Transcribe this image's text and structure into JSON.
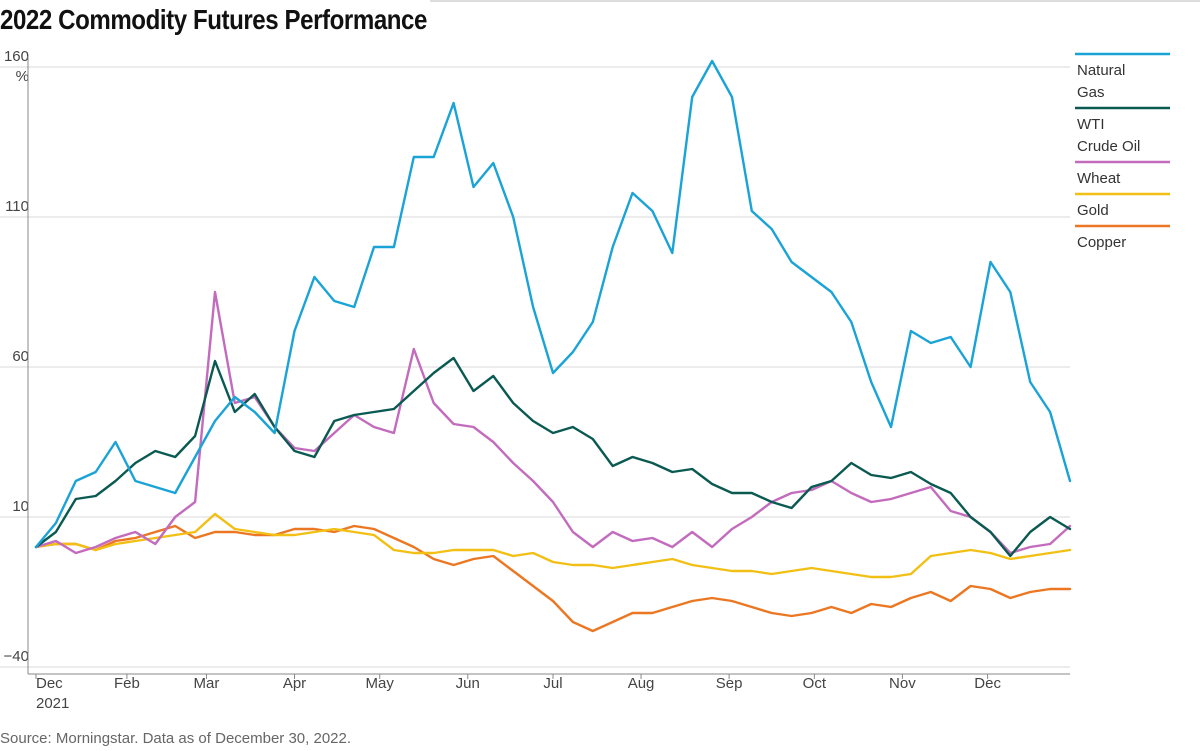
{
  "title": "2022 Commodity Futures Performance",
  "source": "Source: Morningstar. Data as of December 30, 2022.",
  "colors": {
    "natural_gas": "#1aa3d6",
    "wti": "#0b5a52",
    "wheat": "#c36bbd",
    "gold": "#f2c014",
    "copper": "#ec7722"
  },
  "chart_data": {
    "type": "line",
    "title": "2022 Commodity Futures Performance",
    "ylabel": "%",
    "ylim": [
      -40,
      165
    ],
    "yticks": [
      160,
      110,
      60,
      10,
      -40
    ],
    "ytick_labels": [
      "160",
      "110",
      "60",
      "10",
      "−40"
    ],
    "y_unit_label": "%",
    "x_labels": [
      "Dec",
      "Feb",
      "Mar",
      "Apr",
      "May",
      "Jun",
      "Jul",
      "Aug",
      "Sep",
      "Oct",
      "Nov",
      "Dec"
    ],
    "x_year_label": "2021",
    "x_label_dates": [
      "2021-12-31",
      "2022-02-01",
      "2022-03-01",
      "2022-04-01",
      "2022-05-01",
      "2022-06-01",
      "2022-07-01",
      "2022-08-01",
      "2022-09-01",
      "2022-10-01",
      "2022-11-01",
      "2022-12-01"
    ],
    "grid": true,
    "legend_position": "right",
    "x": [
      "2021-12-31",
      "2022-01-07",
      "2022-01-14",
      "2022-01-21",
      "2022-01-28",
      "2022-02-04",
      "2022-02-11",
      "2022-02-18",
      "2022-02-25",
      "2022-03-04",
      "2022-03-11",
      "2022-03-18",
      "2022-03-25",
      "2022-04-01",
      "2022-04-08",
      "2022-04-15",
      "2022-04-22",
      "2022-04-29",
      "2022-05-06",
      "2022-05-13",
      "2022-05-20",
      "2022-05-27",
      "2022-06-03",
      "2022-06-10",
      "2022-06-17",
      "2022-06-24",
      "2022-07-01",
      "2022-07-08",
      "2022-07-15",
      "2022-07-22",
      "2022-07-29",
      "2022-08-05",
      "2022-08-12",
      "2022-08-19",
      "2022-08-26",
      "2022-09-02",
      "2022-09-09",
      "2022-09-16",
      "2022-09-23",
      "2022-09-30",
      "2022-10-07",
      "2022-10-14",
      "2022-10-21",
      "2022-10-28",
      "2022-11-04",
      "2022-11-11",
      "2022-11-18",
      "2022-11-25",
      "2022-12-02",
      "2022-12-09",
      "2022-12-16",
      "2022-12-23",
      "2022-12-30"
    ],
    "series": [
      {
        "name": "Natural Gas",
        "key": "natural_gas",
        "values": [
          0,
          8,
          22,
          25,
          35,
          22,
          20,
          18,
          30,
          42,
          50,
          45,
          38,
          72,
          90,
          82,
          80,
          100,
          100,
          130,
          130,
          148,
          120,
          128,
          110,
          80,
          58,
          65,
          75,
          100,
          118,
          112,
          98,
          150,
          162,
          150,
          112,
          106,
          95,
          90,
          85,
          75,
          55,
          40,
          72,
          68,
          70,
          60,
          95,
          85,
          55,
          45,
          22
        ]
      },
      {
        "name": "WTI Crude Oil",
        "key": "wti",
        "values": [
          0,
          5,
          16,
          17,
          22,
          28,
          32,
          30,
          37,
          62,
          45,
          51,
          40,
          32,
          30,
          42,
          44,
          45,
          46,
          52,
          58,
          63,
          52,
          57,
          48,
          42,
          38,
          40,
          36,
          27,
          30,
          28,
          25,
          26,
          21,
          18,
          18,
          15,
          13,
          20,
          22,
          28,
          24,
          23,
          25,
          21,
          18,
          10,
          5,
          -3,
          5,
          10,
          6
        ]
      },
      {
        "name": "Wheat",
        "key": "wheat",
        "values": [
          0,
          2,
          -2,
          0,
          3,
          5,
          1,
          10,
          15,
          85,
          48,
          50,
          40,
          33,
          32,
          38,
          44,
          40,
          38,
          66,
          48,
          41,
          40,
          35,
          28,
          22,
          15,
          5,
          0,
          5,
          2,
          3,
          0,
          5,
          0,
          6,
          10,
          15,
          18,
          19,
          22,
          18,
          15,
          16,
          18,
          20,
          12,
          10,
          5,
          -2,
          0,
          1,
          7
        ]
      },
      {
        "name": "Gold",
        "key": "gold",
        "values": [
          0,
          1,
          1,
          -1,
          1,
          2,
          3,
          4,
          5,
          11,
          6,
          5,
          4,
          4,
          5,
          6,
          5,
          4,
          -1,
          -2,
          -2,
          -1,
          -1,
          -1,
          -3,
          -2,
          -5,
          -6,
          -6,
          -7,
          -6,
          -5,
          -4,
          -6,
          -7,
          -8,
          -8,
          -9,
          -8,
          -7,
          -8,
          -9,
          -10,
          -10,
          -9,
          -3,
          -2,
          -1,
          -2,
          -4,
          -3,
          -2,
          -1
        ]
      },
      {
        "name": "Copper",
        "key": "copper",
        "values": [
          0,
          1,
          1,
          -1,
          2,
          3,
          5,
          7,
          3,
          5,
          5,
          4,
          4,
          6,
          6,
          5,
          7,
          6,
          3,
          0,
          -4,
          -6,
          -4,
          -3,
          -8,
          -13,
          -18,
          -25,
          -28,
          -25,
          -22,
          -22,
          -20,
          -18,
          -17,
          -18,
          -20,
          -22,
          -23,
          -22,
          -20,
          -22,
          -19,
          -20,
          -17,
          -15,
          -18,
          -13,
          -14,
          -17,
          -15,
          -14,
          -14
        ]
      }
    ]
  },
  "legend": {
    "natural_gas": [
      "Natural",
      "Gas"
    ],
    "wti": [
      "WTI",
      "Crude Oil"
    ],
    "wheat": [
      "Wheat"
    ],
    "gold": [
      "Gold"
    ],
    "copper": [
      "Copper"
    ]
  }
}
